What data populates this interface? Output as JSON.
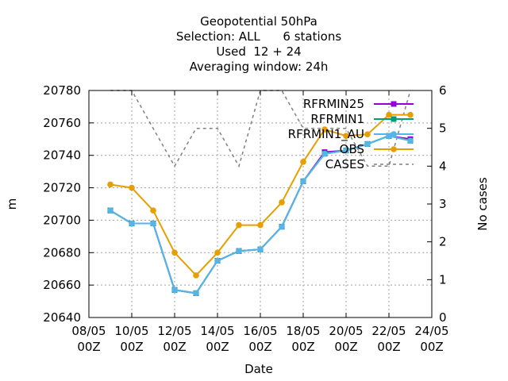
{
  "chart_data": {
    "type": "line",
    "title_lines": [
      "Geopotential 50hPa",
      "Selection: ALL      6 stations",
      "Used  12 + 24",
      "Averaging window: 24h"
    ],
    "xlabel": "Date",
    "ylabel": "m",
    "y2label": "No cases",
    "xlim": [
      0,
      16
    ],
    "ylim": [
      20640,
      20780
    ],
    "y2lim": [
      0,
      6
    ],
    "x_ticks": [
      {
        "value": 0,
        "line1": "08/05",
        "line2": "00Z"
      },
      {
        "value": 2,
        "line1": "10/05",
        "line2": "00Z"
      },
      {
        "value": 4,
        "line1": "12/05",
        "line2": "00Z"
      },
      {
        "value": 6,
        "line1": "14/05",
        "line2": "00Z"
      },
      {
        "value": 8,
        "line1": "16/05",
        "line2": "00Z"
      },
      {
        "value": 10,
        "line1": "18/05",
        "line2": "00Z"
      },
      {
        "value": 12,
        "line1": "20/05",
        "line2": "00Z"
      },
      {
        "value": 14,
        "line1": "22/05",
        "line2": "00Z"
      },
      {
        "value": 16,
        "line1": "24/05",
        "line2": "00Z"
      }
    ],
    "y_ticks": [
      20640,
      20660,
      20680,
      20700,
      20720,
      20740,
      20760,
      20780
    ],
    "y2_ticks": [
      0,
      1,
      2,
      3,
      4,
      5,
      6
    ],
    "grid": true,
    "legend_position": "top-right",
    "series": [
      {
        "name": "RFRMIN25",
        "color": "#9400d3",
        "marker": "square",
        "axis": "y",
        "x": [
          1,
          2,
          3,
          4,
          5,
          6,
          7,
          8,
          9,
          10,
          11,
          12,
          13,
          14,
          15
        ],
        "y": [
          20706,
          20698,
          20698,
          20657,
          20655,
          20675,
          20681,
          20682,
          20696,
          20724,
          20742,
          20743,
          20747,
          20752,
          20750
        ]
      },
      {
        "name": "RFRMIN1",
        "color": "#009e73",
        "marker": "square",
        "axis": "y",
        "x": [
          1,
          2,
          3,
          4,
          5,
          6,
          7,
          8,
          9,
          10,
          11,
          12,
          13,
          14,
          15
        ],
        "y": [
          20706,
          20698,
          20698,
          20657,
          20655,
          20675,
          20681,
          20682,
          20696,
          20724,
          20741,
          20743,
          20747,
          20752,
          20749
        ]
      },
      {
        "name": "RFRMIN1_AU",
        "color": "#56b4e9",
        "marker": "circle",
        "axis": "y",
        "x": [
          1,
          2,
          3,
          4,
          5,
          6,
          7,
          8,
          9,
          10,
          11,
          12,
          13,
          14,
          15
        ],
        "y": [
          20706,
          20698,
          20698,
          20657,
          20655,
          20675,
          20681,
          20682,
          20696,
          20724,
          20741,
          20743,
          20747,
          20752,
          20749
        ]
      },
      {
        "name": "OBS",
        "color": "#e69f00",
        "marker": "circle",
        "axis": "y",
        "x": [
          1,
          2,
          3,
          4,
          5,
          6,
          7,
          8,
          9,
          10,
          11,
          12,
          13,
          14,
          15
        ],
        "y": [
          20722,
          20720,
          20706,
          20680,
          20666,
          20680,
          20697,
          20697,
          20711,
          20736,
          20756,
          20752,
          20753,
          20765,
          20765
        ]
      },
      {
        "name": "CASES",
        "color": "#808080",
        "marker": "none",
        "dashed": true,
        "axis": "y2",
        "x": [
          1,
          2,
          3,
          4,
          5,
          6,
          7,
          8,
          9,
          10,
          11,
          12,
          13,
          14,
          15
        ],
        "y": [
          6,
          6,
          5,
          4,
          5,
          5,
          4,
          6,
          6,
          5,
          5,
          5,
          4,
          4,
          6
        ]
      }
    ]
  }
}
